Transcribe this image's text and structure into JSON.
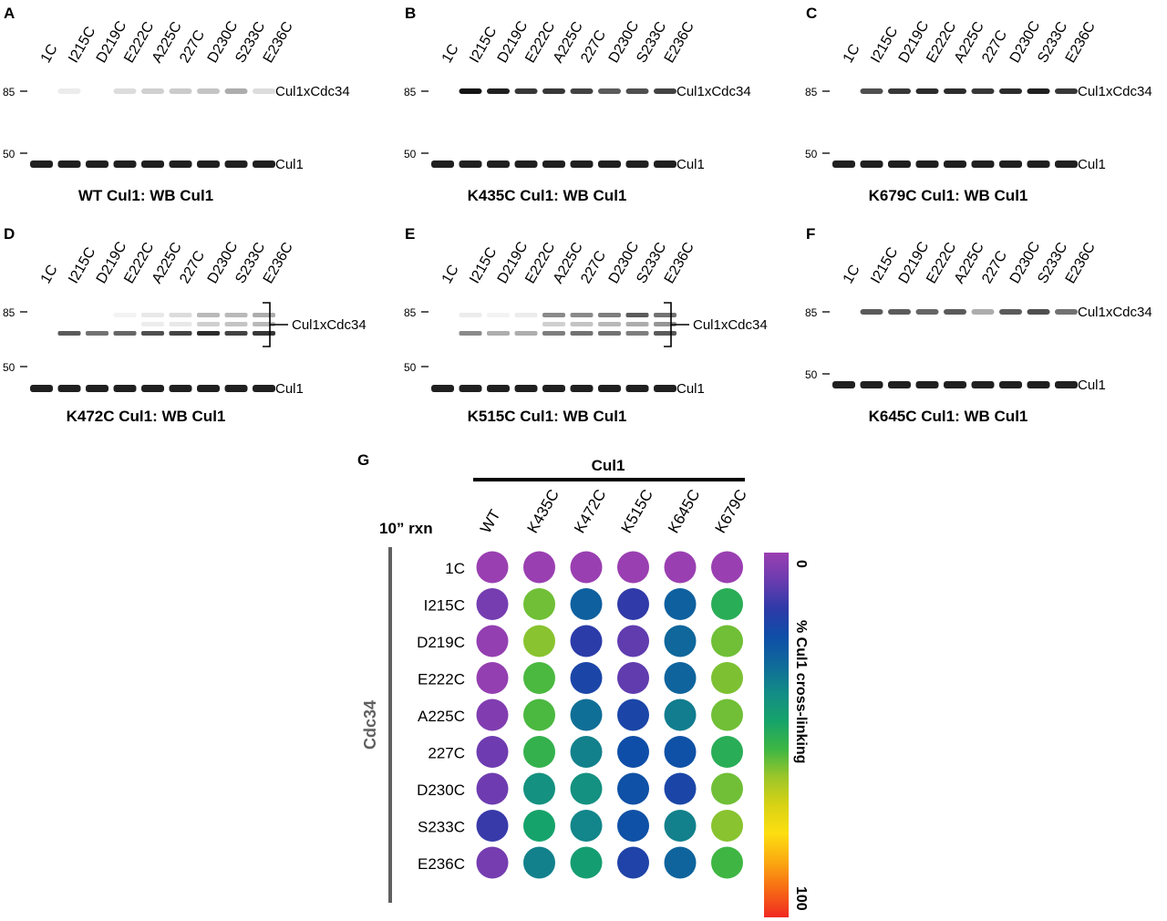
{
  "lanes": [
    "1C",
    "I215C",
    "D219C",
    "E222C",
    "A225C",
    "227C",
    "D230C",
    "S233C",
    "E236C"
  ],
  "labels": {
    "crosslink": "Cul1xCdc34",
    "cul1": "Cul1",
    "mw85": "85",
    "mw50": "50"
  },
  "panels": [
    {
      "letter": "A",
      "caption": "WT Cul1: WB Cul1",
      "style": "single",
      "crosslink_intensity": [
        0,
        0.08,
        0,
        0.15,
        0.2,
        0.22,
        0.25,
        0.35,
        0.15
      ]
    },
    {
      "letter": "B",
      "caption": "K435C Cul1: WB Cul1",
      "style": "single",
      "crosslink_intensity": [
        0,
        1.0,
        0.95,
        0.85,
        0.85,
        0.8,
        0.7,
        0.75,
        0.8
      ]
    },
    {
      "letter": "C",
      "caption": "K679C Cul1: WB Cul1",
      "style": "single",
      "crosslink_intensity": [
        0,
        0.75,
        0.85,
        0.9,
        0.9,
        0.85,
        0.9,
        0.95,
        0.85
      ]
    },
    {
      "letter": "D",
      "caption": "K472C Cul1: WB Cul1",
      "style": "bracket",
      "upper_intensity": [
        0,
        0,
        0,
        0.05,
        0.1,
        0.15,
        0.3,
        0.3,
        0.35
      ],
      "mid_intensity": [
        0,
        0,
        0,
        0,
        0.08,
        0.1,
        0.2,
        0.25,
        0.3
      ],
      "lower_intensity": [
        0,
        0.7,
        0.6,
        0.65,
        0.75,
        0.8,
        0.9,
        0.8,
        0.85
      ]
    },
    {
      "letter": "E",
      "caption": "K515C Cul1: WB Cul1",
      "style": "bracket",
      "upper_intensity": [
        0,
        0.08,
        0.05,
        0.08,
        0.5,
        0.5,
        0.55,
        0.7,
        0.6
      ],
      "mid_intensity": [
        0,
        0,
        0,
        0,
        0.2,
        0.25,
        0.3,
        0.35,
        0.45
      ],
      "lower_intensity": [
        0,
        0.5,
        0.35,
        0.35,
        0.55,
        0.6,
        0.6,
        0.55,
        0.7
      ]
    },
    {
      "letter": "F",
      "caption": "K645C Cul1: WB Cul1",
      "style": "single",
      "crosslink_intensity": [
        0,
        0.7,
        0.7,
        0.65,
        0.7,
        0.35,
        0.7,
        0.75,
        0.6
      ]
    }
  ],
  "heatmap": {
    "letter": "G",
    "reaction_label": "10” rxn",
    "column_header": "Cul1",
    "row_header": "Cdc34",
    "columns": [
      "WT",
      "K435C",
      "K472C",
      "K515C",
      "K645C",
      "K679C"
    ],
    "rows": [
      "1C",
      "I215C",
      "D219C",
      "E222C",
      "A225C",
      "227C",
      "D230C",
      "S233C",
      "E236C"
    ],
    "colorbar_label": "% Cul1 cross-linking",
    "colorbar_min": "0",
    "colorbar_max": "100",
    "colormap": [
      "#9a3fb1",
      "#6a3cb0",
      "#2d3aa8",
      "#0f4ea8",
      "#0f6a9a",
      "#138c86",
      "#16a36a",
      "#3db644",
      "#9cc62a",
      "#d8d214",
      "#fcdf10",
      "#fbaa10",
      "#f76a14",
      "#f02a22"
    ]
  },
  "chart_data": {
    "type": "heatmap",
    "title": "10” rxn",
    "xlabel": "Cul1",
    "ylabel": "Cdc34",
    "x": [
      "WT",
      "K435C",
      "K472C",
      "K515C",
      "K645C",
      "K679C"
    ],
    "y": [
      "1C",
      "I215C",
      "D219C",
      "E222C",
      "A225C",
      "227C",
      "D230C",
      "S233C",
      "E236C"
    ],
    "values": [
      [
        0,
        0,
        0,
        0,
        0,
        0
      ],
      [
        6,
        58,
        28,
        15,
        28,
        50
      ],
      [
        1,
        60,
        16,
        9,
        30,
        58
      ],
      [
        1,
        55,
        20,
        9,
        29,
        59
      ],
      [
        4,
        55,
        32,
        20,
        35,
        58
      ],
      [
        7,
        52,
        36,
        23,
        24,
        50
      ],
      [
        7,
        40,
        40,
        24,
        20,
        58
      ],
      [
        14,
        46,
        37,
        24,
        36,
        60
      ],
      [
        6,
        36,
        44,
        19,
        29,
        54
      ]
    ],
    "colorbar_label": "% Cul1 cross-linking",
    "vmin": 0,
    "vmax": 100
  }
}
